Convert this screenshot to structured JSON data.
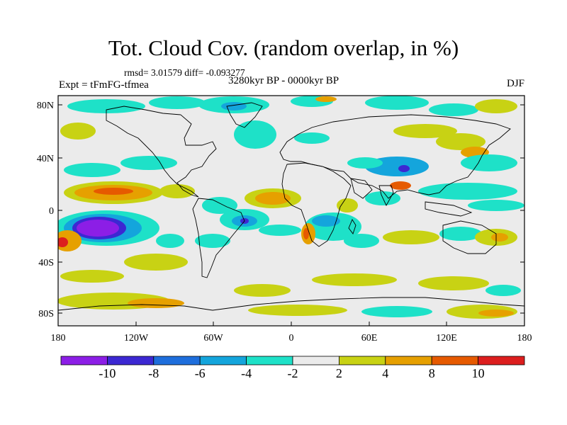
{
  "title": "Tot. Cloud Cov. (random overlap, in %)",
  "stats": "rmsd= 3.01579 diff= -0.093277",
  "experiment": "Expt = tFmFG-tfmea",
  "period": "3280kyr BP - 0000kyr BP",
  "season": "DJF",
  "lat_ticks": [
    "80N",
    "40N",
    "0",
    "40S",
    "80S"
  ],
  "lon_ticks": [
    "180",
    "120W",
    "60W",
    "0",
    "60E",
    "120E",
    "180"
  ],
  "colorbar": {
    "colors": [
      "#8c1ee6",
      "#3c28d2",
      "#1e6edc",
      "#14a5dc",
      "#1ee1c8",
      "#ebebeb",
      "#c8d214",
      "#e6a000",
      "#e65a00",
      "#dc1e1e"
    ],
    "labels": [
      "-10",
      "-8",
      "-6",
      "-4",
      "-2",
      "2",
      "4",
      "8",
      "10"
    ]
  }
}
